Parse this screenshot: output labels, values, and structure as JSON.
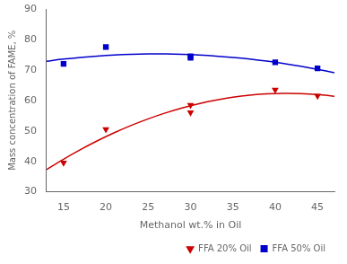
{
  "chart_data": {
    "type": "scatter",
    "xlabel": "Methanol wt.% in Oil",
    "ylabel": "Mass concentration of FAME, %",
    "xlim": [
      13,
      47
    ],
    "ylim": [
      30,
      90
    ],
    "xticks": [
      15,
      20,
      25,
      30,
      35,
      40,
      45
    ],
    "yticks": [
      30,
      40,
      50,
      60,
      70,
      80,
      90
    ],
    "grid": false,
    "legend": "lower right",
    "series": [
      {
        "name": "FFA 20% Oil",
        "color": "#cc0000",
        "marker": "triangle_down",
        "x": [
          15,
          20,
          30,
          30,
          40,
          45
        ],
        "values": [
          39.5,
          50.5,
          58.5,
          56.0,
          63.5,
          61.5
        ],
        "fit": {
          "x": [
            13,
            15,
            17,
            19,
            21,
            23,
            25,
            27,
            29,
            31,
            33,
            35,
            37,
            39,
            41,
            43,
            45,
            47
          ],
          "values": [
            37.3,
            40.7,
            43.84,
            46.74,
            49.39,
            51.8,
            53.95,
            55.86,
            57.53,
            58.94,
            60.11,
            61.03,
            61.7,
            62.13,
            62.31,
            62.24,
            61.93,
            61.36
          ]
        }
      },
      {
        "name": "FFA 50% Oil",
        "color": "#0000cc",
        "marker": "square",
        "x": [
          15,
          20,
          30,
          30,
          40,
          45
        ],
        "values": [
          72.0,
          77.5,
          74.5,
          74.0,
          72.5,
          70.5
        ],
        "fit": {
          "x": [
            13,
            15,
            17,
            19,
            21,
            23,
            25,
            27,
            29,
            31,
            33,
            35,
            37,
            39,
            41,
            43,
            45,
            47
          ],
          "values": [
            72.86,
            73.54,
            74.1,
            74.55,
            74.89,
            75.11,
            75.23,
            75.23,
            75.12,
            74.89,
            74.56,
            74.11,
            73.55,
            72.88,
            72.1,
            71.2,
            70.19,
            69.07
          ]
        }
      }
    ]
  }
}
